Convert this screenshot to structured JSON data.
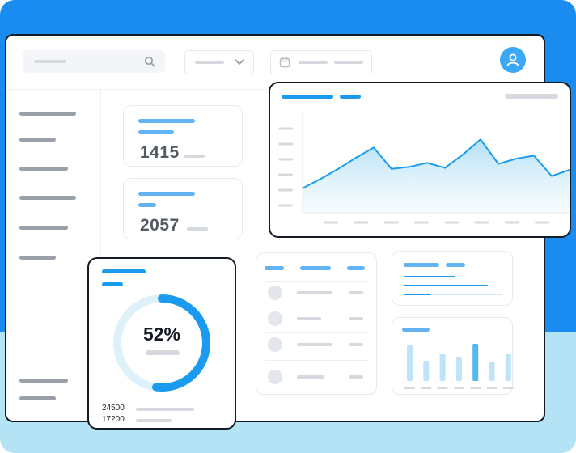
{
  "colors": {
    "accent": "#1a9bf0",
    "frame": "#1a8cf0",
    "light_bg": "#b3e3f4",
    "area_fill": "#cfeaf8"
  },
  "icons": {
    "search": "search-icon",
    "dropdown": "chevron-down-icon",
    "calendar": "calendar-icon",
    "user": "user-icon"
  },
  "kpi": [
    {
      "value": "1415"
    },
    {
      "value": "2057"
    }
  ],
  "progress": {
    "label": "52%",
    "fraction": 0.52,
    "stats": [
      {
        "value": "24500"
      },
      {
        "value": "17200"
      }
    ]
  },
  "chart_data": [
    {
      "type": "area",
      "values": [
        0.24,
        0.33,
        0.43,
        0.54,
        0.64,
        0.43,
        0.45,
        0.49,
        0.44,
        0.57,
        0.72,
        0.48,
        0.53,
        0.56,
        0.36,
        0.42
      ]
    },
    {
      "type": "bar",
      "values": [
        0.9,
        0.5,
        0.68,
        0.6,
        0.92,
        0.47,
        0.68
      ],
      "highlight_index": 4
    }
  ]
}
